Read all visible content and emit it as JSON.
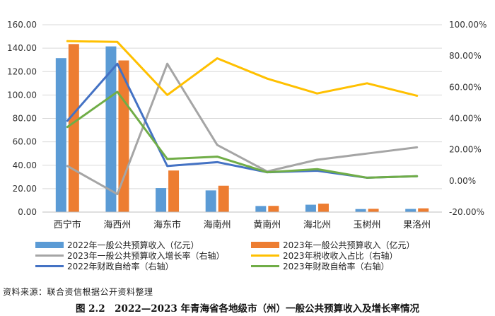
{
  "chart_data": {
    "type": "bar",
    "categories": [
      "西宁市",
      "海西州",
      "海东市",
      "海南州",
      "黄南州",
      "海北州",
      "玉树州",
      "果洛州"
    ],
    "y_left": {
      "ticks": [
        "0.00",
        "20.00",
        "40.00",
        "60.00",
        "80.00",
        "100.00",
        "120.00",
        "140.00",
        "160.00"
      ],
      "ylim": [
        0,
        160
      ]
    },
    "y_right": {
      "ticks": [
        "-20.00%",
        "0.00%",
        "20.00%",
        "40.00%",
        "60.00%",
        "80.00%",
        "100.00%"
      ],
      "ylim": [
        -20,
        100
      ]
    },
    "grid": "horizontal",
    "legend_position": "bottom",
    "series": [
      {
        "name": "2022年一般公共预算收入（亿元）",
        "kind": "bar",
        "axis": "left",
        "color": "#5B9BD5",
        "values": [
          131.5,
          141.5,
          20.5,
          18.5,
          5.2,
          6.3,
          2.6,
          2.7
        ]
      },
      {
        "name": "2023年一般公共预算收入（亿元）",
        "kind": "bar",
        "axis": "left",
        "color": "#ED7D31",
        "values": [
          143.5,
          129.5,
          35.5,
          22.5,
          5.3,
          7.2,
          2.8,
          3.2
        ]
      },
      {
        "name": "2023年一般公共预算收入增长率（右轴）",
        "kind": "line",
        "axis": "right",
        "color": "#A5A5A5",
        "values": [
          9.5,
          -8.5,
          75.0,
          23.0,
          6.0,
          13.5,
          17.5,
          21.5
        ]
      },
      {
        "name": "2023年税收收入占比（右轴）",
        "kind": "line",
        "axis": "right",
        "color": "#FFC000",
        "values": [
          89.5,
          89.0,
          55.0,
          78.5,
          65.5,
          56.0,
          62.5,
          54.5
        ]
      },
      {
        "name": "2022年财政自给率（右轴）",
        "kind": "line",
        "axis": "right",
        "color": "#4472C4",
        "values": [
          38.5,
          75.0,
          9.5,
          12.0,
          5.5,
          6.5,
          2.0,
          3.0
        ]
      },
      {
        "name": "2023年财政自给率（右轴）",
        "kind": "line",
        "axis": "right",
        "color": "#70AD47",
        "values": [
          34.5,
          57.0,
          14.0,
          15.5,
          5.5,
          7.5,
          2.0,
          3.0
        ]
      }
    ]
  },
  "source_text": "资料来源：联合资信根据公开资料整理",
  "caption_text": "图 2.2　2022—2023 年青海省各地级市（州）一般公共预算收入及增长率情况"
}
